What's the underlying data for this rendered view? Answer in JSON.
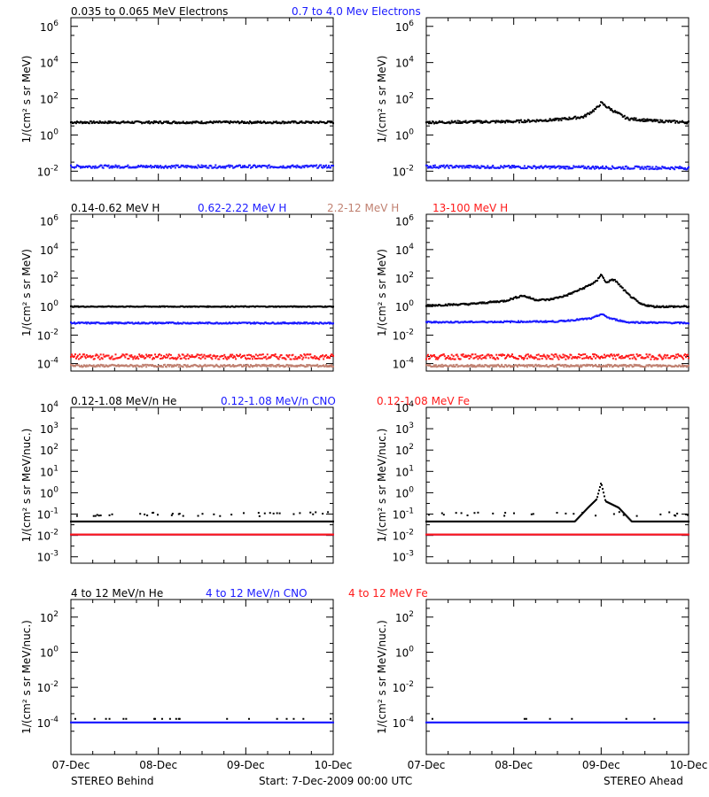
{
  "colors": {
    "black": "#000000",
    "blue": "#1a1aff",
    "tan": "#c08070",
    "red": "#ff1a1a"
  },
  "footer": {
    "left": "STEREO Behind",
    "center": "Start:  7-Dec-2009 00:00 UTC",
    "right": "STEREO Ahead"
  },
  "chart_data": [
    {
      "type": "scatter",
      "row": 1,
      "panel": "STEREO Behind",
      "ylabel": "1/(cm² s sr MeV)",
      "yscale": "log",
      "ylim": [
        0.003,
        3000000
      ],
      "yticks": [
        "10^-2",
        "10^0",
        "10^2",
        "10^4",
        "10^6"
      ],
      "x_ticklabels": [
        "07-Dec",
        "08-Dec",
        "09-Dec",
        "10-Dec"
      ],
      "xlim": [
        0,
        3
      ],
      "series": [
        {
          "name": "0.035 to 0.065 MeV Electrons",
          "color": "black",
          "profile": "flat",
          "values": [
            [
              0,
              5
            ],
            [
              3,
              5
            ]
          ],
          "spread_dex": 0.06
        },
        {
          "name": "0.7 to 4.0 Mev Electrons",
          "color": "blue",
          "profile": "flat",
          "values": [
            [
              0,
              0.018
            ],
            [
              3,
              0.018
            ]
          ],
          "spread_dex": 0.08
        }
      ]
    },
    {
      "type": "scatter",
      "row": 1,
      "panel": "STEREO Ahead",
      "ylabel": "1/(cm² s sr MeV)",
      "yscale": "log",
      "ylim": [
        0.003,
        3000000
      ],
      "yticks": [
        "10^-2",
        "10^0",
        "10^2",
        "10^4",
        "10^6"
      ],
      "x_ticklabels": [
        "07-Dec",
        "08-Dec",
        "09-Dec",
        "10-Dec"
      ],
      "xlim": [
        0,
        3
      ],
      "series": [
        {
          "name": "0.035 to 0.065 MeV Electrons",
          "color": "black",
          "profile": "curve",
          "values": [
            [
              0,
              5
            ],
            [
              1.0,
              5.5
            ],
            [
              1.5,
              7
            ],
            [
              1.8,
              10
            ],
            [
              1.95,
              30
            ],
            [
              2.0,
              60
            ],
            [
              2.05,
              40
            ],
            [
              2.15,
              20
            ],
            [
              2.3,
              8
            ],
            [
              2.6,
              6
            ],
            [
              3,
              5
            ]
          ],
          "spread_dex": 0.07
        },
        {
          "name": "0.7 to 4.0 Mev Electrons",
          "color": "blue",
          "profile": "flat",
          "values": [
            [
              0,
              0.018
            ],
            [
              3,
              0.015
            ]
          ],
          "spread_dex": 0.08
        }
      ]
    },
    {
      "type": "scatter",
      "row": 2,
      "panel": "STEREO Behind",
      "ylabel": "1/(cm² s sr MeV)",
      "yscale": "log",
      "ylim": [
        3e-05,
        3000000
      ],
      "yticks": [
        "10^-4",
        "10^-2",
        "10^0",
        "10^2",
        "10^4",
        "10^6"
      ],
      "x_ticklabels": [
        "07-Dec",
        "08-Dec",
        "09-Dec",
        "10-Dec"
      ],
      "xlim": [
        0,
        3
      ],
      "series": [
        {
          "name": "0.14-0.62 MeV H",
          "color": "black",
          "profile": "flat",
          "values": [
            [
              0,
              1.0
            ],
            [
              3,
              1.0
            ]
          ],
          "spread_dex": 0.03
        },
        {
          "name": "0.62-2.22 MeV H",
          "color": "blue",
          "profile": "flat",
          "values": [
            [
              0,
              0.07
            ],
            [
              3,
              0.07
            ]
          ],
          "spread_dex": 0.05
        },
        {
          "name": "2.2-12 MeV H",
          "color": "tan",
          "profile": "flat",
          "values": [
            [
              0,
              7e-05
            ],
            [
              3,
              7e-05
            ]
          ],
          "spread_dex": 0.08
        },
        {
          "name": "13-100 MeV H",
          "color": "red",
          "profile": "flat",
          "values": [
            [
              0,
              0.0003
            ],
            [
              3,
              0.0003
            ]
          ],
          "spread_dex": 0.18
        }
      ]
    },
    {
      "type": "scatter",
      "row": 2,
      "panel": "STEREO Ahead",
      "ylabel": "1/(cm² s sr MeV)",
      "yscale": "log",
      "ylim": [
        3e-05,
        3000000
      ],
      "yticks": [
        "10^-4",
        "10^-2",
        "10^0",
        "10^2",
        "10^4",
        "10^6"
      ],
      "x_ticklabels": [
        "07-Dec",
        "08-Dec",
        "09-Dec",
        "10-Dec"
      ],
      "xlim": [
        0,
        3
      ],
      "series": [
        {
          "name": "0.14-0.62 MeV H",
          "color": "black",
          "profile": "curve",
          "values": [
            [
              0,
              1.2
            ],
            [
              0.5,
              1.5
            ],
            [
              0.9,
              2.5
            ],
            [
              1.1,
              6
            ],
            [
              1.25,
              3
            ],
            [
              1.4,
              3
            ],
            [
              1.6,
              6
            ],
            [
              1.8,
              20
            ],
            [
              1.95,
              60
            ],
            [
              2.0,
              200
            ],
            [
              2.05,
              50
            ],
            [
              2.15,
              80
            ],
            [
              2.3,
              8
            ],
            [
              2.45,
              1.5
            ],
            [
              2.6,
              1.0
            ],
            [
              3,
              1.0
            ]
          ],
          "spread_dex": 0.06
        },
        {
          "name": "0.62-2.22 MeV H",
          "color": "blue",
          "profile": "curve",
          "values": [
            [
              0,
              0.08
            ],
            [
              1.5,
              0.09
            ],
            [
              1.9,
              0.15
            ],
            [
              2.0,
              0.3
            ],
            [
              2.1,
              0.15
            ],
            [
              2.3,
              0.08
            ],
            [
              3,
              0.07
            ]
          ],
          "spread_dex": 0.05
        },
        {
          "name": "2.2-12 MeV H",
          "color": "tan",
          "profile": "flat",
          "values": [
            [
              0,
              7e-05
            ],
            [
              3,
              7e-05
            ]
          ],
          "spread_dex": 0.08
        },
        {
          "name": "13-100 MeV H",
          "color": "red",
          "profile": "flat",
          "values": [
            [
              0,
              0.0003
            ],
            [
              3,
              0.0003
            ]
          ],
          "spread_dex": 0.18
        }
      ]
    },
    {
      "type": "scatter",
      "row": 3,
      "panel": "STEREO Behind",
      "ylabel": "1/(cm² s sr MeV/nuc.)",
      "yscale": "log",
      "ylim": [
        0.0005,
        10000
      ],
      "yticks": [
        "10^-3",
        "10^-2",
        "10^-1",
        "10^0",
        "10^1",
        "10^2",
        "10^3",
        "10^4"
      ],
      "x_ticklabels": [
        "07-Dec",
        "08-Dec",
        "09-Dec",
        "10-Dec"
      ],
      "xlim": [
        0,
        3
      ],
      "series": [
        {
          "name": "0.12-1.08 MeV/n He",
          "color": "black",
          "profile": "flat",
          "values": [
            [
              0,
              0.045
            ],
            [
              3,
              0.045
            ]
          ],
          "spread_dex": 0.0,
          "extra_level": 0.1
        },
        {
          "name": "0.12-1.08 MeV/n CNO",
          "color": "blue",
          "profile": "flat",
          "values": [
            [
              0,
              0.011
            ],
            [
              3,
              0.011
            ]
          ],
          "spread_dex": 0.0
        },
        {
          "name": "0.12-1.08 MeV Fe",
          "color": "red",
          "profile": "flat",
          "values": [
            [
              0,
              0.011
            ],
            [
              3,
              0.011
            ]
          ],
          "spread_dex": 0.0
        }
      ]
    },
    {
      "type": "scatter",
      "row": 3,
      "panel": "STEREO Ahead",
      "ylabel": "1/(cm² s sr MeV/nuc.)",
      "yscale": "log",
      "ylim": [
        0.0005,
        10000
      ],
      "yticks": [
        "10^-3",
        "10^-2",
        "10^-1",
        "10^0",
        "10^1",
        "10^2",
        "10^3",
        "10^4"
      ],
      "x_ticklabels": [
        "07-Dec",
        "08-Dec",
        "09-Dec",
        "10-Dec"
      ],
      "xlim": [
        0,
        3
      ],
      "series": [
        {
          "name": "0.12-1.08 MeV/n He",
          "color": "black",
          "profile": "curve",
          "values": [
            [
              0,
              0.045
            ],
            [
              1.7,
              0.045
            ],
            [
              1.85,
              0.2
            ],
            [
              1.95,
              0.5
            ],
            [
              2.0,
              3
            ],
            [
              2.05,
              0.4
            ],
            [
              2.2,
              0.2
            ],
            [
              2.35,
              0.045
            ],
            [
              3,
              0.045
            ]
          ],
          "spread_dex": 0.0,
          "extra_level": 0.1
        },
        {
          "name": "0.12-1.08 MeV/n CNO",
          "color": "blue",
          "profile": "flat",
          "values": [
            [
              0,
              0.011
            ],
            [
              3,
              0.011
            ]
          ],
          "spread_dex": 0.0
        },
        {
          "name": "0.12-1.08 MeV Fe",
          "color": "red",
          "profile": "flat",
          "values": [
            [
              0,
              0.011
            ],
            [
              3,
              0.011
            ]
          ],
          "spread_dex": 0.0
        }
      ]
    },
    {
      "type": "scatter",
      "row": 4,
      "panel": "STEREO Behind",
      "ylabel": "1/(cm² s sr MeV/nuc.)",
      "yscale": "log",
      "ylim": [
        1.5e-06,
        1000
      ],
      "yticks": [
        "10^-4",
        "10^-2",
        "10^0",
        "10^2"
      ],
      "x_ticklabels": [
        "07-Dec",
        "08-Dec",
        "09-Dec",
        "10-Dec"
      ],
      "xlim": [
        0,
        3
      ],
      "series": [
        {
          "name": "4 to 12 MeV/n He",
          "color": "black",
          "profile": "sparse",
          "values": [
            [
              0,
              0.0001
            ],
            [
              3,
              0.0001
            ]
          ],
          "spread_dex": 0.0
        },
        {
          "name": "4 to 12 MeV/n CNO",
          "color": "blue",
          "profile": "flat",
          "values": [
            [
              0,
              0.0001
            ],
            [
              3,
              0.0001
            ]
          ],
          "spread_dex": 0.0
        },
        {
          "name": "4 to 12 MeV Fe",
          "color": "red",
          "profile": "none",
          "values": [],
          "spread_dex": 0.0
        }
      ]
    },
    {
      "type": "scatter",
      "row": 4,
      "panel": "STEREO Ahead",
      "ylabel": "1/(cm² s sr MeV/nuc.)",
      "yscale": "log",
      "ylim": [
        1.5e-06,
        1000
      ],
      "yticks": [
        "10^-4",
        "10^-2",
        "10^0",
        "10^2"
      ],
      "x_ticklabels": [
        "07-Dec",
        "08-Dec",
        "09-Dec",
        "10-Dec"
      ],
      "xlim": [
        0,
        3
      ],
      "series": [
        {
          "name": "4 to 12 MeV/n He",
          "color": "black",
          "profile": "sparse",
          "values": [
            [
              0,
              0.0001
            ],
            [
              3,
              0.0001
            ]
          ],
          "spread_dex": 0.0
        },
        {
          "name": "4 to 12 MeV/n CNO",
          "color": "blue",
          "profile": "flat",
          "values": [
            [
              0,
              0.0001
            ],
            [
              3,
              0.0001
            ]
          ],
          "spread_dex": 0.0
        },
        {
          "name": "4 to 12 MeV Fe",
          "color": "red",
          "profile": "none",
          "values": [],
          "spread_dex": 0.0
        }
      ]
    }
  ]
}
